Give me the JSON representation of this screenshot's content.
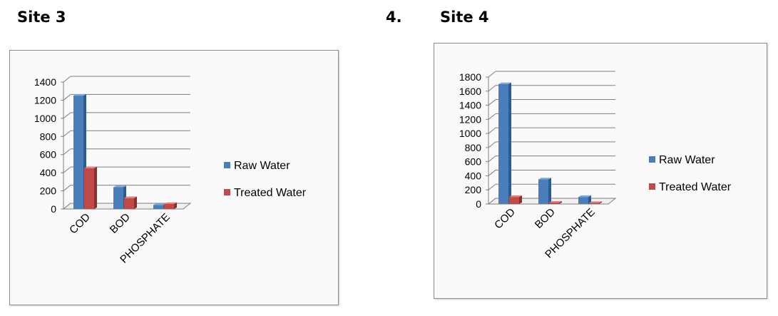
{
  "headings": {
    "left_title": "Site 3",
    "right_number": "4.",
    "right_title": "Site 4"
  },
  "chart_data": [
    {
      "type": "bar",
      "title": "Site 3",
      "categories": [
        "COD",
        "BOD",
        "PHOSPHATE"
      ],
      "series": [
        {
          "name": "Raw Water",
          "values": [
            1250,
            240,
            45
          ]
        },
        {
          "name": "Treated Water",
          "values": [
            450,
            120,
            55
          ]
        }
      ],
      "ylim": [
        0,
        1400
      ],
      "yticks": [
        "0",
        "200",
        "400",
        "600",
        "800",
        "1000",
        "1200",
        "1400"
      ],
      "grid": true,
      "legend": "right"
    },
    {
      "type": "bar",
      "title": "Site 4",
      "categories": [
        "COD",
        "BOD",
        "PHOSPHATE"
      ],
      "series": [
        {
          "name": "Raw Water",
          "values": [
            1700,
            350,
            100
          ]
        },
        {
          "name": "Treated Water",
          "values": [
            100,
            20,
            15
          ]
        }
      ],
      "ylim": [
        0,
        1800
      ],
      "yticks": [
        "0",
        "200",
        "400",
        "600",
        "800",
        "1000",
        "1200",
        "1400",
        "1600",
        "1800"
      ],
      "grid": true,
      "legend": "right"
    }
  ],
  "colors": {
    "raw": "#4a7ebb",
    "raw_dark": "#2f5a8f",
    "raw_light": "#7ea6d6",
    "treated": "#be4b48",
    "treated_dark": "#8f2f2d",
    "treated_light": "#d98280"
  }
}
